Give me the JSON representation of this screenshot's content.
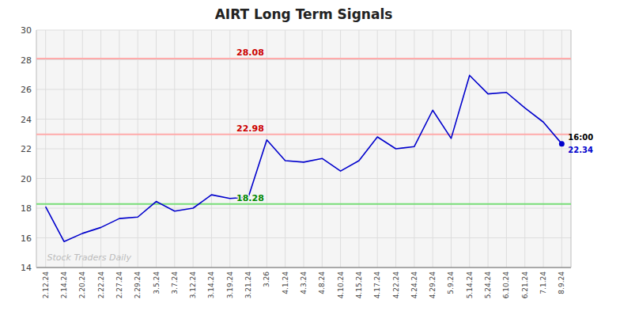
{
  "chart_data": {
    "type": "line",
    "title": "AIRT Long Term Signals",
    "categories": [
      "2.12.24",
      "2.14.24",
      "2.20.24",
      "2.22.24",
      "2.27.24",
      "2.29.24",
      "3.5.24",
      "3.7.24",
      "3.12.24",
      "3.14.24",
      "3.19.24",
      "3.21.24",
      "3.26",
      "4.1.24",
      "4.3.24",
      "4.8.24",
      "4.10.24",
      "4.15.24",
      "4.17.24",
      "4.22.24",
      "4.24.24",
      "4.29.24",
      "5.9.24",
      "5.14.24",
      "5.24.24",
      "6.10.24",
      "6.21.24",
      "7.1.24",
      "8.9.24"
    ],
    "values": [
      18.1,
      15.75,
      16.3,
      16.7,
      17.3,
      17.4,
      18.45,
      17.8,
      18.0,
      18.9,
      18.65,
      18.75,
      22.6,
      21.2,
      21.1,
      21.35,
      20.5,
      21.2,
      22.8,
      22.0,
      22.15,
      24.6,
      22.7,
      26.95,
      25.7,
      25.8,
      24.75,
      23.8,
      22.34
    ],
    "color": "#0000cc",
    "reference_lines": [
      {
        "value": 28.08,
        "color": "#ffaaaa",
        "label_color": "#cc0000"
      },
      {
        "value": 22.98,
        "color": "#ffaaaa",
        "label_color": "#cc0000"
      },
      {
        "value": 18.28,
        "color": "#77dd77",
        "label_color": "#008800"
      }
    ],
    "annotations": [
      "16:00"
    ],
    "watermark": "Stock Traders Daily",
    "ylim": [
      14,
      30
    ],
    "yticks": [
      14,
      16,
      18,
      20,
      22,
      24,
      26,
      28,
      30
    ],
    "grid": true
  }
}
